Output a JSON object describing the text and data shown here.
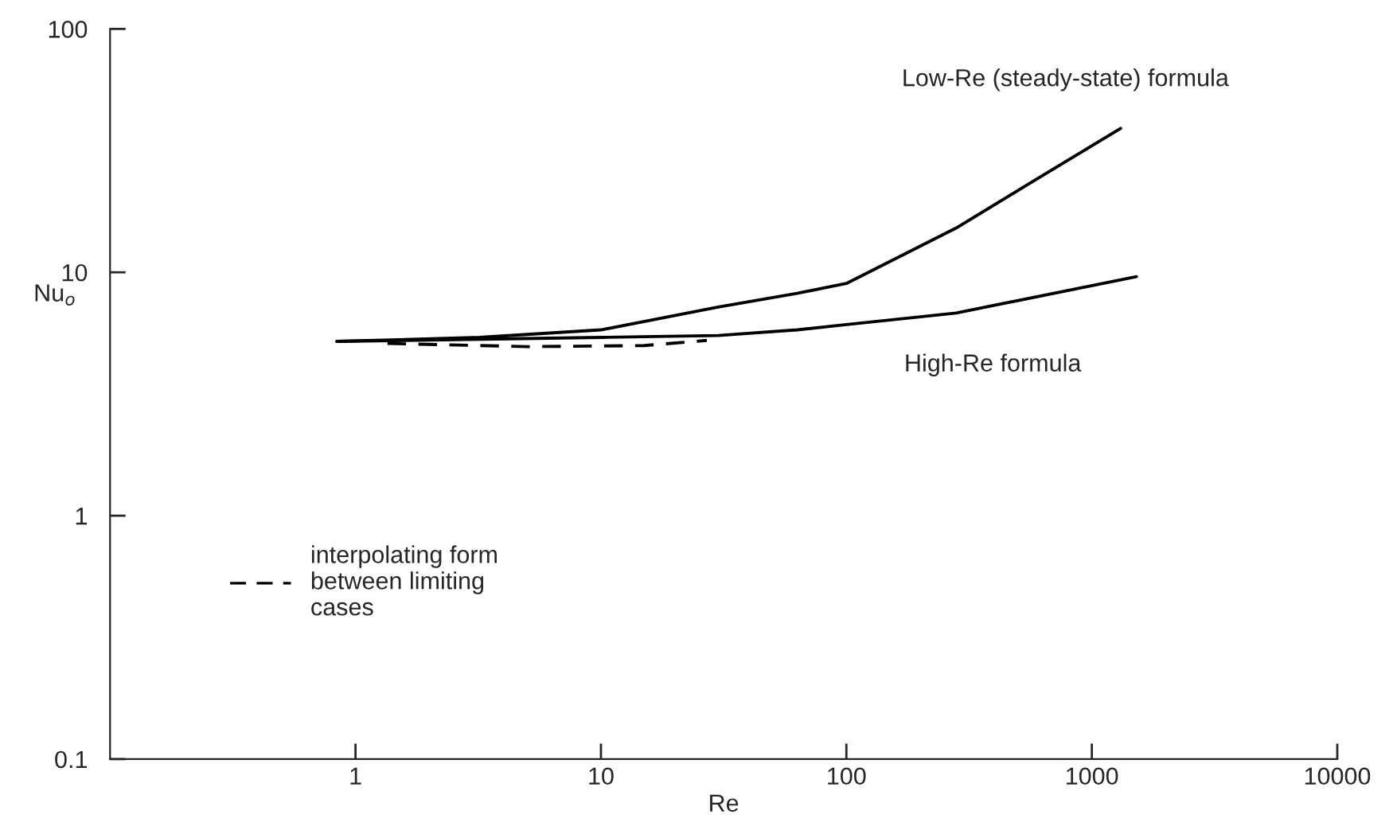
{
  "chart_data": {
    "type": "line",
    "xlabel": "Re",
    "ylabel": "Nu$_{o}$",
    "log": "xy",
    "xlim": [
      0.1,
      10000
    ],
    "ylim": [
      0.1,
      100
    ],
    "xticks": [
      1,
      10,
      100,
      1000,
      10000
    ],
    "yticks": [
      0.1,
      1,
      10,
      100
    ],
    "grid": false,
    "legend": "lower left",
    "marker": "none",
    "series": [
      {
        "name": "Low-Re (steady-state) formula",
        "color": "#000000",
        "line_style": "solid",
        "x": [
          0.84,
          3.2,
          10,
          30,
          63,
          100,
          280,
          590,
          1310
        ],
        "values": [
          5.2,
          5.4,
          5.8,
          7.2,
          8.2,
          9.0,
          15.2,
          24,
          39
        ]
      },
      {
        "name": "High-Re formula",
        "color": "#000000",
        "line_style": "solid",
        "x": [
          0.84,
          10,
          30,
          63,
          100,
          280,
          1520
        ],
        "values": [
          5.2,
          5.4,
          5.5,
          5.8,
          6.1,
          6.8,
          9.6
        ]
      },
      {
        "name": "interpolating form\nbetween limiting\ncases",
        "color": "#000000",
        "line_style": "dashed",
        "x": [
          1.35,
          5,
          15,
          27
        ],
        "values": [
          5.1,
          4.95,
          5.0,
          5.25
        ]
      }
    ]
  }
}
